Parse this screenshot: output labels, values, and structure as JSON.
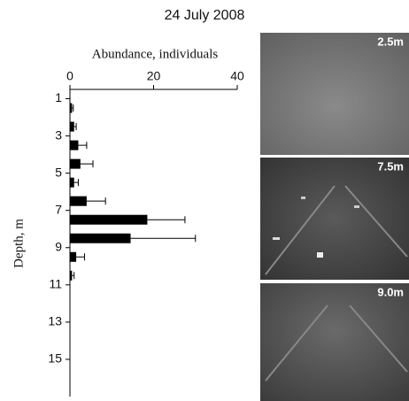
{
  "chart_data": {
    "type": "hbar",
    "title": "24 July 2008",
    "xlabel": "Abundance, individuals",
    "ylabel": "Depth, m",
    "y": [
      1.5,
      2.5,
      3.5,
      4.5,
      5.5,
      6.5,
      7.5,
      8.5,
      9.5,
      10.5
    ],
    "values": [
      0.5,
      1,
      2,
      2.5,
      1,
      4,
      18.5,
      14.5,
      1.5,
      0.5
    ],
    "errors": [
      0.3,
      0.5,
      2,
      3,
      1,
      4.5,
      9,
      15.5,
      2,
      0.5
    ],
    "color": "#000000",
    "xlim": [
      0,
      40
    ],
    "xticks": [
      0,
      20,
      40
    ],
    "ylim": [
      0.5,
      17
    ],
    "yticks": [
      1,
      3,
      5,
      7,
      9,
      11,
      13,
      15
    ]
  },
  "panels": [
    {
      "label": "2.5m"
    },
    {
      "label": "7.5m"
    },
    {
      "label": "9.0m"
    }
  ]
}
